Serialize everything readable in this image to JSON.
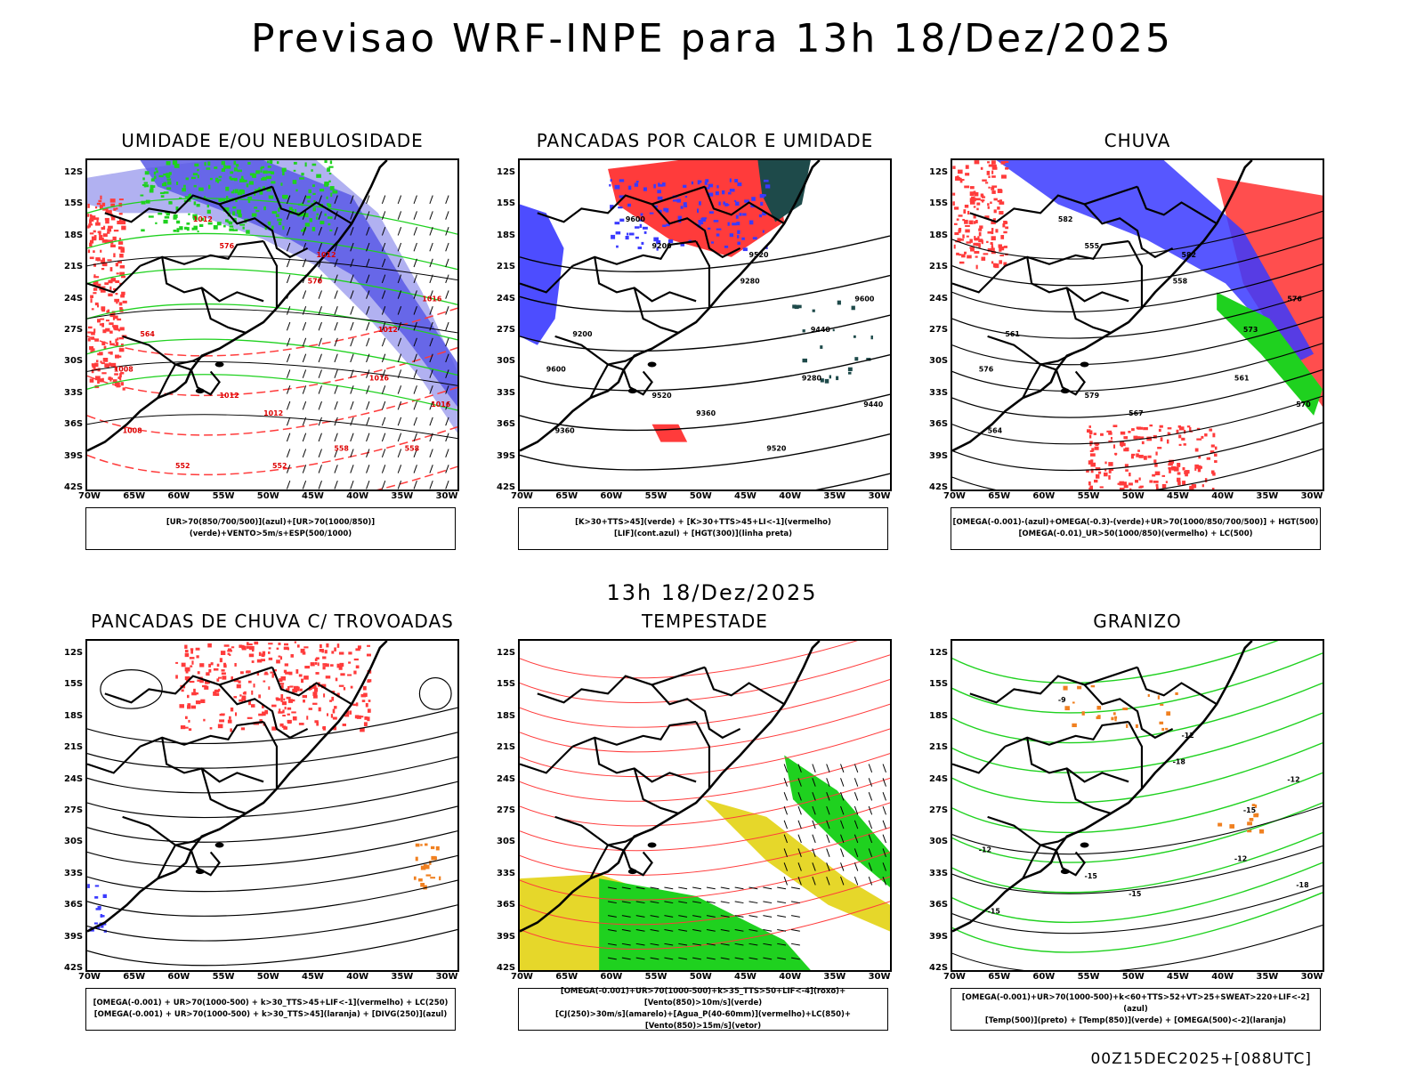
{
  "title": "Previsao WRF-INPE  para 13h 18/Dez/2025",
  "mid_time": "13h 18/Dez/2025",
  "footer": "00Z15DEC2025+[088UTC]",
  "lat_labels": [
    "12S",
    "15S",
    "18S",
    "21S",
    "24S",
    "27S",
    "30S",
    "33S",
    "36S",
    "39S",
    "42S"
  ],
  "lon_labels": [
    "70W",
    "65W",
    "60W",
    "55W",
    "50W",
    "45W",
    "40W",
    "35W",
    "30W"
  ],
  "colors": {
    "red": "#ff3b3b",
    "blue": "#3a3aff",
    "green": "#1fd11f",
    "lavender": "#a9a9f0",
    "darkblue": "#5a5ae6",
    "yellow": "#e6d72a",
    "teal": "#1e4a4a",
    "orange": "#f08020"
  },
  "panels": [
    {
      "title": "UMIDADE E/OU NEBULOSIDADE",
      "legend": [
        "[UR>70(850/700/500)](azul)+[UR>70(1000/850)](verde)+VENTO>5m/s+ESP(500/1000)"
      ],
      "contour_labels": [
        "1012",
        "1012",
        "1008",
        "1012",
        "1016",
        "1012",
        "1016",
        "1012",
        "1008",
        "1016",
        "570",
        "576",
        "564",
        "558",
        "552",
        "552",
        "558"
      ]
    },
    {
      "title": "PANCADAS POR CALOR E UMIDADE",
      "legend": [
        "[K>30+TTS>45](verde) + [K>30+TTS>45+LI<-1](vermelho)",
        "[LIF](cont.azul) + [HGT(300)](linha preta)"
      ],
      "contour_labels": [
        "9600",
        "9520",
        "9600",
        "9520",
        "9600",
        "9440",
        "9440",
        "9360",
        "9360",
        "9280",
        "9280",
        "9200",
        "9200",
        "9520"
      ]
    },
    {
      "title": "CHUVA",
      "legend": [
        "[OMEGA(-0.001)-(azul)+OMEGA(-0.3)-(verde)+UR>70(1000/850/700/500)] + HGT(500)",
        "[OMEGA(-0.01)_UR>50(1000/850)(vermelho) + LC(500)"
      ],
      "contour_labels": [
        "582",
        "582",
        "576",
        "579",
        "576",
        "573",
        "570",
        "567",
        "564",
        "561",
        "558",
        "555",
        "561"
      ]
    },
    {
      "title": "PANCADAS DE CHUVA C/ TROVOADAS",
      "legend": [
        "[OMEGA(-0.001) + UR>70(1000-500) + k>30_TTS>45+LIF<-1](vermelho) + LC(250)",
        "[OMEGA(-0.001) + UR>70(1000-500) + k>30_TTS>45](laranja) + [DIVG(250)](azul)"
      ],
      "contour_labels": []
    },
    {
      "title": "TEMPESTADE",
      "legend": [
        "[OMEGA(-0.001)+UR>70(1000-500)+k>35_TTS>50+LIF<-4](roxo)+[Vento(850)>10m/s](verde)",
        "[CJ(250)>30m/s](amarelo)+[Agua_P(40-60mm)](vermelho)+LC(850)+[Vento(850)>15m/s](vetor)"
      ],
      "contour_labels": []
    },
    {
      "title": "GRANIZO",
      "legend": [
        "[OMEGA(-0.001)+UR>70(1000-500)+k<60+TTS>52+VT>25+SWEAT>220+LIF<-2](azul)",
        "[Temp(500)](preto) + [Temp(850)](verde) + [OMEGA(500)<-2](laranja)"
      ],
      "contour_labels": [
        "-9",
        "-12",
        "-12",
        "-15",
        "-12",
        "-15",
        "-18",
        "-15",
        "-15",
        "-12",
        "-18"
      ]
    }
  ]
}
